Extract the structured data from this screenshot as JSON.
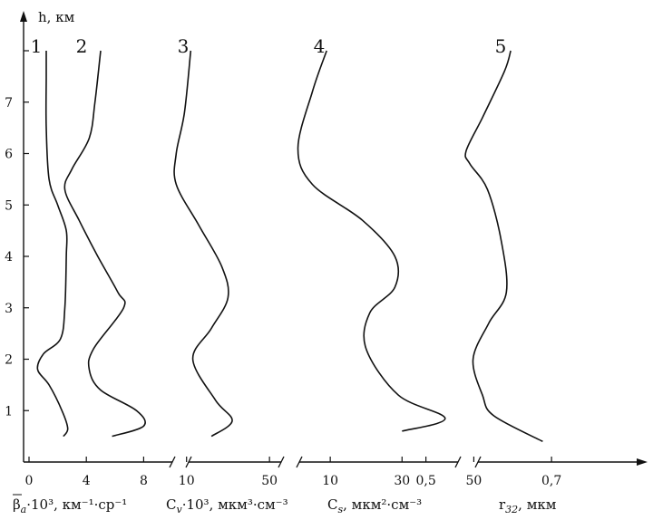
{
  "chart_data": {
    "type": "line",
    "title": "",
    "ylabel": "h, км",
    "ylim": [
      0,
      8
    ],
    "yticks": [
      "1",
      "2",
      "3",
      "4",
      "5",
      "6",
      "7"
    ],
    "grid": false,
    "panels": [
      {
        "name": "1",
        "xlabel_main": "β",
        "xlabel_sub": "a",
        "xlabel_tail": "·10³, км⁻¹·ср⁻¹",
        "xlim": [
          0,
          10
        ],
        "xticks": [
          {
            "v": 0,
            "label": "0"
          },
          {
            "v": 4,
            "label": "4"
          },
          {
            "v": 8,
            "label": "8"
          }
        ],
        "points": [
          [
            2.4,
            0.5
          ],
          [
            2.7,
            0.65
          ],
          [
            2.3,
            1.0
          ],
          [
            1.4,
            1.5
          ],
          [
            0.6,
            1.8
          ],
          [
            1.0,
            2.1
          ],
          [
            2.2,
            2.4
          ],
          [
            2.5,
            3.0
          ],
          [
            2.6,
            4.0
          ],
          [
            2.6,
            4.5
          ],
          [
            2.0,
            5.0
          ],
          [
            1.4,
            5.5
          ],
          [
            1.2,
            6.5
          ],
          [
            1.2,
            7.5
          ],
          [
            1.2,
            8.0
          ]
        ]
      },
      {
        "name": "2",
        "xlabel_main": "",
        "xlabel_sub": "",
        "xlabel_tail": "",
        "xlim": [
          0,
          10
        ],
        "points": [
          [
            5.8,
            0.5
          ],
          [
            8.0,
            0.7
          ],
          [
            7.5,
            1.0
          ],
          [
            5.0,
            1.4
          ],
          [
            4.2,
            1.8
          ],
          [
            4.5,
            2.2
          ],
          [
            6.6,
            3.0
          ],
          [
            6.2,
            3.3
          ],
          [
            4.8,
            4.0
          ],
          [
            3.5,
            4.7
          ],
          [
            2.5,
            5.3
          ],
          [
            3.0,
            5.7
          ],
          [
            4.2,
            6.3
          ],
          [
            4.6,
            7.0
          ],
          [
            5.0,
            8.0
          ]
        ]
      },
      {
        "name": "3",
        "xlabel_main": "C",
        "xlabel_sub": "v",
        "xlabel_tail": "·10³, мкм³·см⁻³",
        "xlim": [
          -10,
          60
        ],
        "xticks": [
          {
            "v": 10,
            "label": "10"
          },
          {
            "v": 50,
            "label": "50"
          }
        ],
        "points": [
          [
            22,
            0.5
          ],
          [
            32,
            0.8
          ],
          [
            24,
            1.2
          ],
          [
            13,
            2.0
          ],
          [
            22,
            2.6
          ],
          [
            30,
            3.2
          ],
          [
            27,
            3.8
          ],
          [
            16,
            4.6
          ],
          [
            5,
            5.4
          ],
          [
            5,
            6.0
          ],
          [
            9,
            6.8
          ],
          [
            12,
            8.0
          ]
        ]
      },
      {
        "name": "4",
        "xlabel_main": "C",
        "xlabel_sub": "s",
        "xlabel_tail": ", мкм²·см⁻³",
        "xlim": [
          -10,
          60
        ],
        "xticks": [
          {
            "v": 10,
            "label": "10"
          },
          {
            "v": 30,
            "label": "30"
          },
          {
            "v": 50,
            "label": "50"
          }
        ],
        "points": [
          [
            30,
            0.6
          ],
          [
            42,
            0.85
          ],
          [
            29,
            1.3
          ],
          [
            20,
            2.2
          ],
          [
            21,
            2.9
          ],
          [
            28,
            3.4
          ],
          [
            28,
            4.0
          ],
          [
            19,
            4.7
          ],
          [
            5,
            5.4
          ],
          [
            1,
            6.1
          ],
          [
            5,
            7.2
          ],
          [
            9,
            8.0
          ]
        ]
      },
      {
        "name": "5",
        "xlabel_main": "r",
        "xlabel_sub": "32",
        "xlabel_tail": ", мкм",
        "xlim": [
          0.4,
          0.8
        ],
        "xticks": [
          {
            "v": 0.45,
            "label": "0,5"
          },
          {
            "v": 0.65,
            "label": "0,7"
          }
        ],
        "points": [
          [
            0.636,
            0.4
          ],
          [
            0.558,
            0.9
          ],
          [
            0.54,
            1.3
          ],
          [
            0.525,
            2.0
          ],
          [
            0.55,
            2.7
          ],
          [
            0.578,
            3.3
          ],
          [
            0.57,
            4.3
          ],
          [
            0.548,
            5.3
          ],
          [
            0.52,
            5.8
          ],
          [
            0.514,
            6.05
          ],
          [
            0.54,
            6.7
          ],
          [
            0.575,
            7.6
          ],
          [
            0.585,
            8.0
          ]
        ]
      }
    ]
  }
}
